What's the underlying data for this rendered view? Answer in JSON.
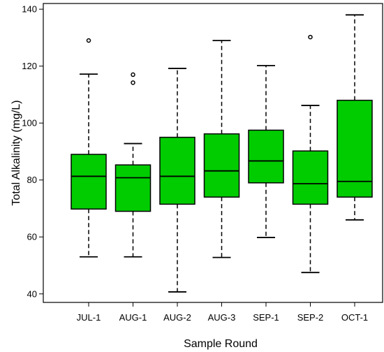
{
  "chart_data": {
    "type": "boxplot",
    "title": "",
    "xlabel": "Sample Round",
    "ylabel": "Total Alkalinity (mg/L)",
    "ylim": [
      37,
      142
    ],
    "yticks": [
      40,
      60,
      80,
      100,
      120,
      140
    ],
    "box_color": "#00cc00",
    "grid": false,
    "categories": [
      "JUL-1",
      "AUG-1",
      "AUG-2",
      "AUG-3",
      "SEP-1",
      "SEP-2",
      "OCT-1"
    ],
    "boxes": [
      {
        "category": "JUL-1",
        "whisker_low": 53,
        "q1": 69.8,
        "median": 81.3,
        "q3": 89,
        "whisker_high": 117.2,
        "outliers": [
          129
        ]
      },
      {
        "category": "AUG-1",
        "whisker_low": 53,
        "q1": 69,
        "median": 80.8,
        "q3": 85.3,
        "whisker_high": 92.8,
        "outliers": [
          114.2,
          117
        ]
      },
      {
        "category": "AUG-2",
        "whisker_low": 40.7,
        "q1": 71.5,
        "median": 81.3,
        "q3": 95,
        "whisker_high": 119.2,
        "outliers": []
      },
      {
        "category": "AUG-3",
        "whisker_low": 52.8,
        "q1": 74,
        "median": 83.2,
        "q3": 96.2,
        "whisker_high": 129,
        "outliers": []
      },
      {
        "category": "SEP-1",
        "whisker_low": 59.8,
        "q1": 79,
        "median": 86.7,
        "q3": 97.5,
        "whisker_high": 120.2,
        "outliers": []
      },
      {
        "category": "SEP-2",
        "whisker_low": 47.5,
        "q1": 71.5,
        "median": 78.7,
        "q3": 90.2,
        "whisker_high": 106.2,
        "outliers": [
          130.2
        ]
      },
      {
        "category": "OCT-1",
        "whisker_low": 66,
        "q1": 74,
        "median": 79.5,
        "q3": 108,
        "whisker_high": 138,
        "outliers": []
      }
    ]
  }
}
